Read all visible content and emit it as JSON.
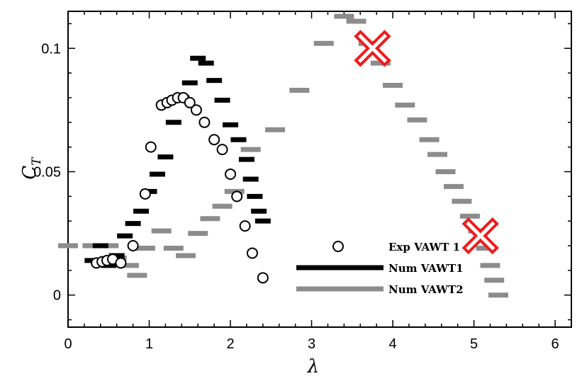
{
  "chart_data": {
    "type": "scatter",
    "title": "",
    "xlabel": "λ",
    "ylabel": "C",
    "ylabel_subscript": "T",
    "xlim": [
      0,
      6.2
    ],
    "ylim": [
      -0.013,
      0.115
    ],
    "xticks": [
      0,
      1,
      2,
      3,
      4,
      5,
      6
    ],
    "yticks": [
      0,
      0.05,
      0.1
    ],
    "xtick_labels": [
      "0",
      "1",
      "2",
      "3",
      "4",
      "5",
      "6"
    ],
    "ytick_labels": [
      "0",
      "0.05",
      "0.1"
    ],
    "grid": false,
    "legend_position": "bottom-right",
    "series": [
      {
        "name": "Exp VAWT 1",
        "marker": "circle",
        "color": "#000000",
        "x": [
          0.35,
          0.42,
          0.48,
          0.55,
          0.65,
          0.8,
          0.95,
          1.02,
          1.15,
          1.22,
          1.28,
          1.35,
          1.42,
          1.5,
          1.58,
          1.68,
          1.8,
          1.9,
          2.0,
          2.08,
          2.18,
          2.27,
          2.4
        ],
        "y": [
          0.013,
          0.0135,
          0.014,
          0.0145,
          0.013,
          0.02,
          0.041,
          0.06,
          0.077,
          0.078,
          0.079,
          0.08,
          0.08,
          0.078,
          0.075,
          0.07,
          0.063,
          0.059,
          0.049,
          0.04,
          0.028,
          0.017,
          0.007
        ]
      },
      {
        "name": "Num VAWT1",
        "marker": "dash",
        "color": "#000000",
        "x": [
          0.3,
          0.4,
          0.5,
          0.6,
          0.7,
          0.8,
          0.9,
          1.0,
          1.1,
          1.2,
          1.3,
          1.4,
          1.5,
          1.6,
          1.7,
          1.8,
          1.9,
          2.0,
          2.1,
          2.2,
          2.25,
          2.3,
          2.35,
          2.4
        ],
        "y": [
          0.014,
          0.02,
          0.012,
          0.016,
          0.024,
          0.029,
          0.034,
          0.042,
          0.049,
          0.056,
          0.07,
          0.08,
          0.086,
          0.096,
          0.094,
          0.087,
          0.079,
          0.069,
          0.063,
          0.055,
          0.047,
          0.04,
          0.034,
          0.03
        ]
      },
      {
        "name": "Num VAWT2",
        "marker": "dash",
        "color": "#8c8c8c",
        "x": [
          0.0,
          0.3,
          0.5,
          0.6,
          0.75,
          0.85,
          0.95,
          1.15,
          1.3,
          1.45,
          1.6,
          1.75,
          1.9,
          2.05,
          2.25,
          2.55,
          2.85,
          3.15,
          3.4,
          3.55,
          3.7,
          3.85,
          4.0,
          4.15,
          4.3,
          4.45,
          4.55,
          4.65,
          4.75,
          4.85,
          4.95,
          5.05,
          5.15,
          5.2,
          5.25,
          5.3
        ],
        "y": [
          0.02,
          0.02,
          0.02,
          0.015,
          0.012,
          0.008,
          0.019,
          0.026,
          0.019,
          0.016,
          0.025,
          0.031,
          0.036,
          0.042,
          0.059,
          0.067,
          0.083,
          0.102,
          0.113,
          0.111,
          0.102,
          0.094,
          0.085,
          0.077,
          0.071,
          0.063,
          0.057,
          0.05,
          0.044,
          0.038,
          0.032,
          0.026,
          0.019,
          0.012,
          0.006,
          0.0
        ]
      }
    ],
    "annotations": [
      {
        "type": "cross",
        "color": "#ee1c1c",
        "x": 3.75,
        "y": 0.1
      },
      {
        "type": "cross",
        "color": "#ee1c1c",
        "x": 5.08,
        "y": 0.024
      }
    ]
  }
}
